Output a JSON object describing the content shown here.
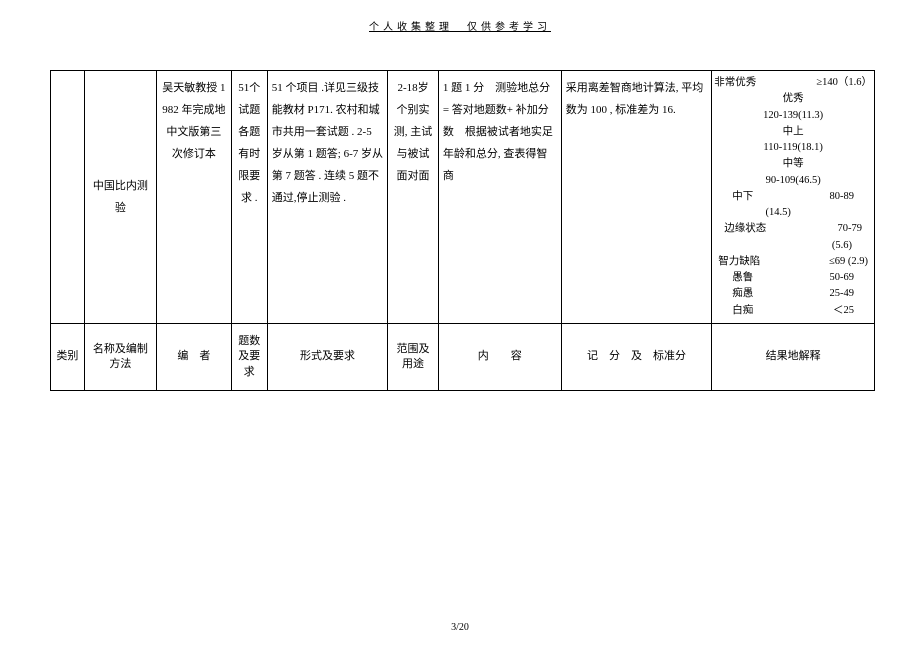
{
  "header": "个人收集整理　仅供参考学习",
  "page_footer": "3/20",
  "table": {
    "row1": {
      "c0": "",
      "c1": "中国比内测　验",
      "c2": "吴天敏教授 1982 年完成地中文版第三次修订本",
      "c3": "51个试题　各题有时限要求 .",
      "c4": "51 个项目 .详见三级技能教材 P171. 农村和城市共用一套试题 . 2-5 岁从第 1 题答; 6-7 岁从第 7 题答 . 连续 5 题不通过,停止测验 .",
      "c5": "2-18岁 个别实测, 主试与被试面对面",
      "c6": "1 题 1 分　测验地总分 = 答对地题数+ 补加分数　根据被试者地实足年龄和总分, 查表得智商",
      "c7": "采用离差智商地计算法, 平均数为 100 , 标准差为 16.",
      "c8": ""
    },
    "iq": {
      "l1a": "非常优秀",
      "l1b": "≥140（1.6）",
      "l2a": "优秀",
      "l2b": "",
      "l3a": "120-139(11.3)",
      "l3b": "",
      "l4a": "中上",
      "l4b": "",
      "l5a": "110-119(18.1)",
      "l5b": "",
      "l6a": "中等",
      "l6b": "",
      "l7a": "90-109(46.5)",
      "l7b": "",
      "l8a": "中下",
      "l8b": "80-89",
      "l9a": "(14.5)",
      "l9b": "",
      "l10a": "边缘状态",
      "l10b": "70-79",
      "l11a": "(5.6)",
      "l11b": "",
      "l12a": "智力缺陷",
      "l12b": "≤69 (2.9)",
      "l13a": "愚鲁",
      "l13b": "50-69",
      "l14a": "痴愚",
      "l14b": "25-49",
      "l15a": "白痴",
      "l15b": "＜25"
    },
    "header_row": {
      "c0": "类别",
      "c1": "名称及编制方法",
      "c2": "编　者",
      "c3": "题数及要求",
      "c4": "形式及要求",
      "c5": "范围及用途",
      "c6": "内　　容",
      "c7": "记　分　及　标准分",
      "c8": "结果地解释"
    }
  }
}
